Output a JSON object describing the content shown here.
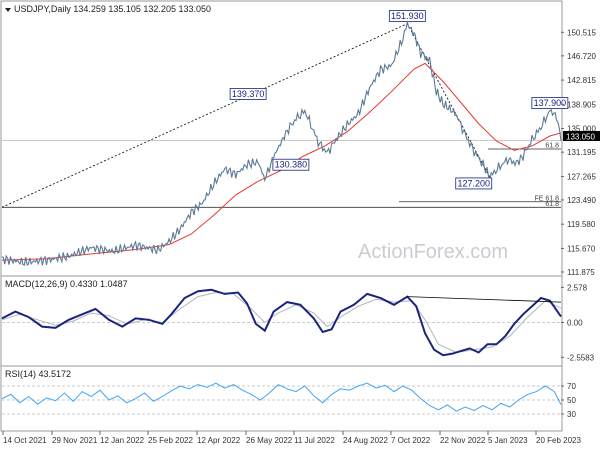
{
  "chart_data": {
    "type": "line",
    "main": {
      "label": "USDJPY,Daily  134.259 135.105 132.205 133.050",
      "ylim": [
        111.875,
        152.5
      ],
      "yticks": [
        "150.515",
        "146.720",
        "142.815",
        "138.905",
        "135.000",
        "131.195",
        "127.265",
        "123.490",
        "119.580",
        "115.670",
        "111.875"
      ],
      "last_price": "133.050",
      "callouts": [
        {
          "text": "151.930",
          "x": 182,
          "y": 151.93
        },
        {
          "text": "139.370",
          "x": 115,
          "y": 139.37
        },
        {
          "text": "130.380",
          "x": 136,
          "y": 130.38
        },
        {
          "text": "137.900",
          "x": 246,
          "y": 137.9
        },
        {
          "text": "127.200",
          "x": 219,
          "y": 127.2
        }
      ],
      "levels": [
        {
          "label": "61.8",
          "value": 131.7
        },
        {
          "label": "FE 61.8",
          "value": 123.2
        },
        {
          "label": "61.8",
          "value": 122.3
        }
      ],
      "ma_label": "",
      "price_series": [
        [
          0,
          114.0
        ],
        [
          10,
          113.4
        ],
        [
          20,
          113.8
        ],
        [
          30,
          114.4
        ],
        [
          40,
          115.8
        ],
        [
          50,
          115.2
        ],
        [
          60,
          116.2
        ],
        [
          70,
          115.4
        ],
        [
          75,
          116.8
        ],
        [
          80,
          118.8
        ],
        [
          85,
          121.5
        ],
        [
          90,
          123.0
        ],
        [
          95,
          126.0
        ],
        [
          100,
          128.5
        ],
        [
          105,
          127.6
        ],
        [
          110,
          129.2
        ],
        [
          115,
          129.6
        ],
        [
          118,
          126.8
        ],
        [
          122,
          130.5
        ],
        [
          128,
          134.6
        ],
        [
          132,
          136.6
        ],
        [
          136,
          137.8
        ],
        [
          138,
          136.2
        ],
        [
          142,
          132.8
        ],
        [
          146,
          131.1
        ],
        [
          150,
          133.2
        ],
        [
          155,
          135.6
        ],
        [
          160,
          137.4
        ],
        [
          165,
          141.5
        ],
        [
          170,
          144.5
        ],
        [
          175,
          145.2
        ],
        [
          180,
          149.5
        ],
        [
          182,
          151.9
        ],
        [
          185,
          150.3
        ],
        [
          188,
          147.2
        ],
        [
          192,
          146.0
        ],
        [
          195,
          141.0
        ],
        [
          198,
          139.0
        ],
        [
          201,
          138.2
        ],
        [
          204,
          137.2
        ],
        [
          208,
          134.0
        ],
        [
          212,
          131.3
        ],
        [
          216,
          129.2
        ],
        [
          219,
          127.2
        ],
        [
          223,
          128.7
        ],
        [
          227,
          130.0
        ],
        [
          231,
          129.4
        ],
        [
          234,
          130.6
        ],
        [
          238,
          133.2
        ],
        [
          242,
          135.2
        ],
        [
          246,
          137.9
        ],
        [
          249,
          137.0
        ],
        [
          251,
          133.05
        ]
      ],
      "ma_series": [
        [
          0,
          113.8
        ],
        [
          20,
          114.0
        ],
        [
          40,
          114.8
        ],
        [
          60,
          115.5
        ],
        [
          75,
          116.3
        ],
        [
          85,
          118.0
        ],
        [
          95,
          121.0
        ],
        [
          105,
          124.3
        ],
        [
          115,
          126.5
        ],
        [
          125,
          128.2
        ],
        [
          135,
          130.5
        ],
        [
          145,
          132.2
        ],
        [
          155,
          134.5
        ],
        [
          165,
          137.6
        ],
        [
          175,
          141.0
        ],
        [
          185,
          144.6
        ],
        [
          190,
          145.5
        ],
        [
          198,
          142.6
        ],
        [
          206,
          139.2
        ],
        [
          214,
          135.8
        ],
        [
          222,
          133.0
        ],
        [
          230,
          131.5
        ],
        [
          238,
          132.2
        ],
        [
          246,
          133.8
        ],
        [
          251,
          134.3
        ]
      ],
      "trendline": [
        [
          0,
          122.3
        ],
        [
          182,
          151.9
        ]
      ],
      "fib_dashed": [
        [
          182,
          151.9
        ],
        [
          219,
          127.2
        ]
      ]
    },
    "macd": {
      "label": "MACD(12,26,9) 0.4330 1.0487",
      "yticks": [
        "2.578",
        "0.00",
        "-2.5583"
      ],
      "ylim": [
        -2.9,
        2.9
      ],
      "series": [
        [
          0,
          0.3
        ],
        [
          6,
          0.8
        ],
        [
          12,
          0.4
        ],
        [
          18,
          -0.3
        ],
        [
          24,
          -0.4
        ],
        [
          30,
          0.2
        ],
        [
          36,
          0.6
        ],
        [
          42,
          1.0
        ],
        [
          48,
          0.2
        ],
        [
          54,
          -0.3
        ],
        [
          60,
          0.3
        ],
        [
          66,
          0.2
        ],
        [
          72,
          -0.1
        ],
        [
          76,
          0.6
        ],
        [
          82,
          1.8
        ],
        [
          88,
          2.3
        ],
        [
          94,
          2.4
        ],
        [
          100,
          2.1
        ],
        [
          106,
          2.2
        ],
        [
          110,
          1.4
        ],
        [
          114,
          -0.1
        ],
        [
          118,
          -0.6
        ],
        [
          122,
          0.8
        ],
        [
          128,
          1.5
        ],
        [
          134,
          1.3
        ],
        [
          140,
          0.3
        ],
        [
          144,
          -0.7
        ],
        [
          148,
          -0.5
        ],
        [
          152,
          0.8
        ],
        [
          158,
          1.3
        ],
        [
          164,
          2.1
        ],
        [
          170,
          1.8
        ],
        [
          176,
          1.3
        ],
        [
          182,
          1.9
        ],
        [
          186,
          1.2
        ],
        [
          190,
          -0.8
        ],
        [
          194,
          -2.0
        ],
        [
          198,
          -2.4
        ],
        [
          202,
          -2.3
        ],
        [
          206,
          -2.1
        ],
        [
          210,
          -1.9
        ],
        [
          214,
          -2.2
        ],
        [
          218,
          -1.6
        ],
        [
          222,
          -1.6
        ],
        [
          226,
          -1.0
        ],
        [
          230,
          -0.1
        ],
        [
          234,
          0.6
        ],
        [
          238,
          1.2
        ],
        [
          242,
          1.8
        ],
        [
          246,
          1.6
        ],
        [
          251,
          0.43
        ]
      ],
      "signal": [
        [
          0,
          0.2
        ],
        [
          8,
          0.6
        ],
        [
          16,
          0.2
        ],
        [
          24,
          -0.2
        ],
        [
          32,
          0.1
        ],
        [
          40,
          0.7
        ],
        [
          48,
          0.5
        ],
        [
          56,
          -0.1
        ],
        [
          64,
          0.2
        ],
        [
          72,
          0.0
        ],
        [
          80,
          1.0
        ],
        [
          88,
          1.9
        ],
        [
          96,
          2.2
        ],
        [
          104,
          2.1
        ],
        [
          112,
          1.0
        ],
        [
          118,
          0.0
        ],
        [
          124,
          0.7
        ],
        [
          132,
          1.3
        ],
        [
          140,
          0.7
        ],
        [
          146,
          -0.3
        ],
        [
          152,
          0.4
        ],
        [
          160,
          1.2
        ],
        [
          168,
          1.7
        ],
        [
          176,
          1.5
        ],
        [
          184,
          1.6
        ],
        [
          190,
          0.2
        ],
        [
          196,
          -1.6
        ],
        [
          204,
          -2.2
        ],
        [
          212,
          -2.0
        ],
        [
          220,
          -1.8
        ],
        [
          228,
          -1.0
        ],
        [
          236,
          0.4
        ],
        [
          244,
          1.6
        ],
        [
          251,
          1.05
        ]
      ],
      "trendline": [
        [
          182,
          1.9
        ],
        [
          251,
          1.5
        ]
      ]
    },
    "rsi": {
      "label": "RSI(14) 43.5172",
      "yticks": [
        "70",
        "50",
        "30"
      ],
      "ylim": [
        10,
        90
      ],
      "series": [
        [
          0,
          52
        ],
        [
          4,
          58
        ],
        [
          8,
          46
        ],
        [
          12,
          55
        ],
        [
          16,
          44
        ],
        [
          20,
          53
        ],
        [
          24,
          49
        ],
        [
          28,
          60
        ],
        [
          32,
          48
        ],
        [
          36,
          62
        ],
        [
          40,
          55
        ],
        [
          44,
          64
        ],
        [
          48,
          50
        ],
        [
          52,
          56
        ],
        [
          56,
          46
        ],
        [
          60,
          52
        ],
        [
          64,
          60
        ],
        [
          68,
          48
        ],
        [
          72,
          55
        ],
        [
          76,
          63
        ],
        [
          80,
          70
        ],
        [
          84,
          66
        ],
        [
          88,
          72
        ],
        [
          92,
          68
        ],
        [
          96,
          74
        ],
        [
          100,
          67
        ],
        [
          104,
          72
        ],
        [
          108,
          64
        ],
        [
          112,
          58
        ],
        [
          116,
          50
        ],
        [
          120,
          60
        ],
        [
          124,
          72
        ],
        [
          128,
          66
        ],
        [
          132,
          62
        ],
        [
          136,
          70
        ],
        [
          140,
          56
        ],
        [
          144,
          46
        ],
        [
          148,
          58
        ],
        [
          152,
          66
        ],
        [
          156,
          64
        ],
        [
          160,
          70
        ],
        [
          164,
          74
        ],
        [
          168,
          67
        ],
        [
          172,
          71
        ],
        [
          176,
          62
        ],
        [
          180,
          70
        ],
        [
          184,
          64
        ],
        [
          188,
          52
        ],
        [
          192,
          42
        ],
        [
          196,
          36
        ],
        [
          200,
          43
        ],
        [
          204,
          34
        ],
        [
          208,
          40
        ],
        [
          212,
          35
        ],
        [
          216,
          42
        ],
        [
          220,
          36
        ],
        [
          224,
          45
        ],
        [
          228,
          40
        ],
        [
          232,
          50
        ],
        [
          236,
          58
        ],
        [
          240,
          62
        ],
        [
          244,
          70
        ],
        [
          248,
          62
        ],
        [
          251,
          43.5
        ]
      ]
    },
    "x_ticks": [
      "14 Oct 2021",
      "29 Nov 2021",
      "12 Jan 2022",
      "25 Feb 2022",
      "12 Apr 2022",
      "26 May 2022",
      "11 Jul 2022",
      "24 Aug 2022",
      "7 Oct 2022",
      "22 Nov 2022",
      "5 Jan 2023",
      "20 Feb 2023"
    ],
    "watermark": "ActionForex.com",
    "colors": {
      "price": "#5b7a96",
      "ma": "#e53935",
      "macd": "#1a237e",
      "signal": "#b0b4b8",
      "rsi": "#42a5f5",
      "trend": "#000000",
      "grid": "#d0d0d0"
    }
  }
}
